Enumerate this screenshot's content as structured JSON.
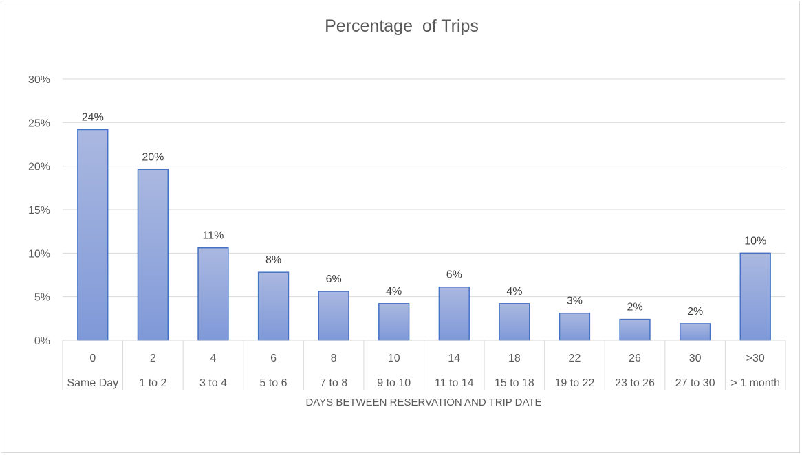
{
  "chart_data": {
    "type": "bar",
    "title": "Percentage  of Trips",
    "xlabel": "DAYS BETWEEN RESERVATION AND TRIP DATE",
    "ylabel": "",
    "ylim": [
      0,
      30
    ],
    "y_ticks": [
      "0%",
      "5%",
      "10%",
      "15%",
      "20%",
      "25%",
      "30%"
    ],
    "y_tick_values": [
      0,
      5,
      10,
      15,
      20,
      25,
      30
    ],
    "categories": [
      "0",
      "2",
      "4",
      "6",
      "8",
      "10",
      "14",
      "18",
      "22",
      "26",
      "30",
      ">30"
    ],
    "category_groups": [
      "Same Day",
      "1 to 2",
      "3 to 4",
      "5 to 6",
      "7 to 8",
      "9 to 10",
      "11 to 14",
      "15 to 18",
      "19 to 22",
      "23 to 26",
      "27 to 30",
      "> 1 month"
    ],
    "values": [
      24.2,
      19.6,
      10.6,
      7.8,
      5.6,
      4.2,
      6.1,
      4.2,
      3.1,
      2.4,
      1.9,
      10.0
    ],
    "data_labels": [
      "24%",
      "20%",
      "11%",
      "8%",
      "6%",
      "4%",
      "6%",
      "4%",
      "3%",
      "2%",
      "2%",
      "10%"
    ],
    "grid": true,
    "legend": "none",
    "colors": {
      "bar_top": "#aab8e0",
      "bar_bottom": "#7f99d8",
      "bar_stroke": "#4472c4",
      "grid": "#d9d9d9",
      "axis": "#d9d9d9",
      "text": "#595959"
    }
  }
}
